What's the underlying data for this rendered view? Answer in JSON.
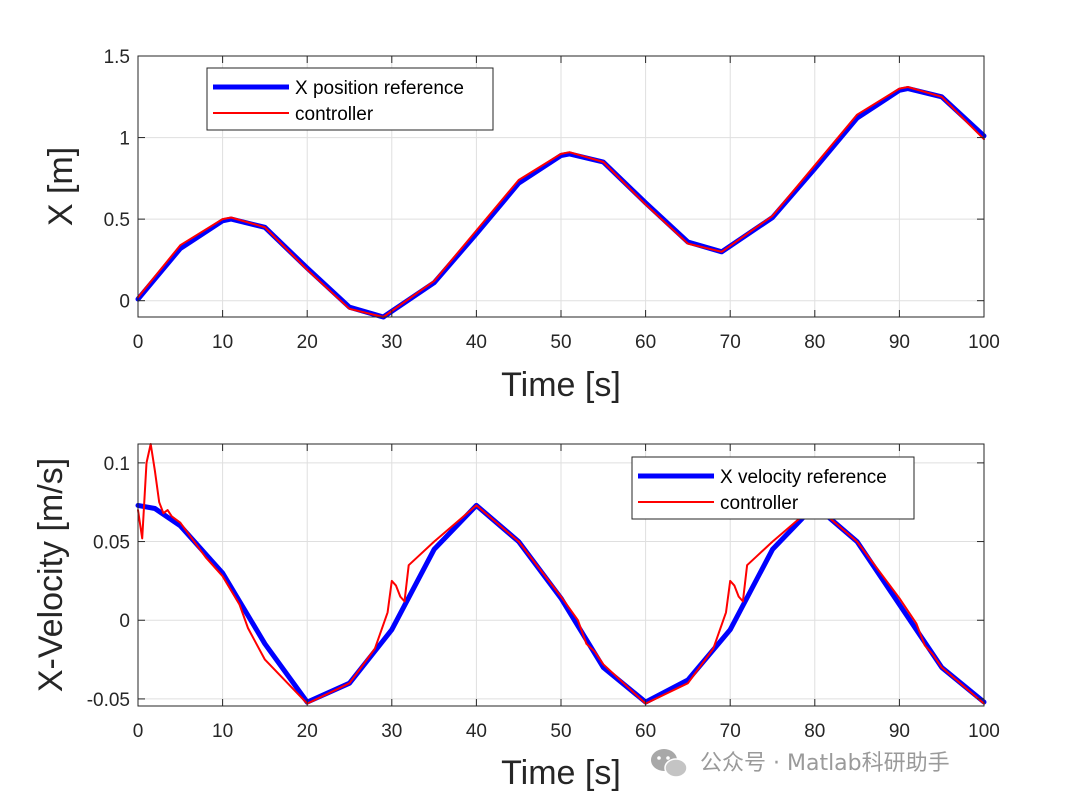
{
  "chart_data": [
    {
      "type": "line",
      "xlabel": "Time [s]",
      "ylabel": "X [m]",
      "xlim": [
        0,
        100
      ],
      "ylim": [
        -0.1,
        1.5
      ],
      "xticks": [
        0,
        10,
        20,
        30,
        40,
        50,
        60,
        70,
        80,
        90,
        100
      ],
      "yticks": [
        0,
        0.5,
        1,
        1.5
      ],
      "ytick_labels": [
        "0",
        "0.5",
        "1",
        "1.5"
      ],
      "grid": true,
      "legend_position": "top-left",
      "series": [
        {
          "name": "X position reference",
          "color": "#0000ff",
          "x": [
            0,
            5,
            10,
            11,
            15,
            20,
            25,
            29,
            35,
            40,
            45,
            50,
            51,
            55,
            60,
            65,
            69,
            75,
            80,
            85,
            90,
            91,
            95,
            100
          ],
          "y": [
            0.01,
            0.32,
            0.49,
            0.5,
            0.45,
            0.2,
            -0.04,
            -0.1,
            0.11,
            0.41,
            0.72,
            0.89,
            0.9,
            0.85,
            0.6,
            0.36,
            0.3,
            0.51,
            0.81,
            1.12,
            1.29,
            1.3,
            1.25,
            1.01
          ]
        },
        {
          "name": "controller",
          "color": "#ff0000",
          "x": [
            0,
            5,
            10,
            11,
            15,
            20,
            25,
            29,
            35,
            40,
            45,
            50,
            51,
            55,
            60,
            65,
            69,
            75,
            80,
            85,
            90,
            91,
            95,
            100
          ],
          "y": [
            0.02,
            0.34,
            0.5,
            0.51,
            0.45,
            0.19,
            -0.05,
            -0.1,
            0.12,
            0.43,
            0.74,
            0.9,
            0.91,
            0.85,
            0.59,
            0.35,
            0.3,
            0.52,
            0.83,
            1.14,
            1.3,
            1.31,
            1.25,
            0.99
          ]
        }
      ]
    },
    {
      "type": "line",
      "xlabel": "Time [s]",
      "ylabel": "X-Velocity [m/s]",
      "xlim": [
        0,
        100
      ],
      "ylim": [
        -0.0545,
        0.112
      ],
      "xticks": [
        0,
        10,
        20,
        30,
        40,
        50,
        60,
        70,
        80,
        90,
        100
      ],
      "yticks": [
        -0.05,
        0,
        0.05,
        0.1
      ],
      "ytick_labels": [
        "-0.05",
        "0",
        "0.05",
        "0.1"
      ],
      "grid": true,
      "legend_position": "top-right",
      "series": [
        {
          "name": "X velocity reference",
          "color": "#0000ff",
          "x": [
            0,
            2,
            5,
            10,
            15,
            20,
            25,
            30,
            35,
            40,
            45,
            50,
            55,
            60,
            65,
            70,
            75,
            80,
            85,
            90,
            95,
            100
          ],
          "y": [
            0.073,
            0.071,
            0.06,
            0.03,
            -0.015,
            -0.052,
            -0.04,
            -0.006,
            0.045,
            0.073,
            0.05,
            0.014,
            -0.03,
            -0.052,
            -0.038,
            -0.006,
            0.045,
            0.073,
            0.05,
            0.01,
            -0.03,
            -0.052
          ]
        },
        {
          "name": "controller",
          "color": "#ff0000",
          "x": [
            0,
            0.5,
            1,
            1.5,
            2,
            2.5,
            3,
            3.5,
            4,
            5,
            8,
            10,
            12,
            13,
            14,
            15,
            20,
            25,
            28,
            29.5,
            30,
            30.5,
            31,
            31.5,
            32,
            33,
            35,
            40,
            45,
            50,
            52,
            53,
            54,
            55,
            60,
            65,
            68,
            69.5,
            70,
            70.5,
            71,
            71.5,
            72,
            73,
            75,
            80,
            85,
            90,
            92,
            93,
            94,
            95,
            100
          ],
          "y": [
            0.07,
            0.052,
            0.1,
            0.112,
            0.095,
            0.075,
            0.068,
            0.07,
            0.066,
            0.062,
            0.04,
            0.028,
            0.01,
            -0.005,
            -0.015,
            -0.025,
            -0.053,
            -0.04,
            -0.018,
            0.005,
            0.025,
            0.022,
            0.015,
            0.012,
            0.035,
            0.04,
            0.05,
            0.073,
            0.05,
            0.015,
            0.0,
            -0.015,
            -0.02,
            -0.028,
            -0.053,
            -0.04,
            -0.018,
            0.005,
            0.025,
            0.022,
            0.015,
            0.012,
            0.035,
            0.04,
            0.05,
            0.073,
            0.05,
            0.014,
            -0.002,
            -0.016,
            -0.022,
            -0.03,
            -0.053
          ]
        }
      ]
    }
  ],
  "watermark": {
    "icon": "wechat-icon",
    "text": "公众号 · Matlab科研助手"
  }
}
